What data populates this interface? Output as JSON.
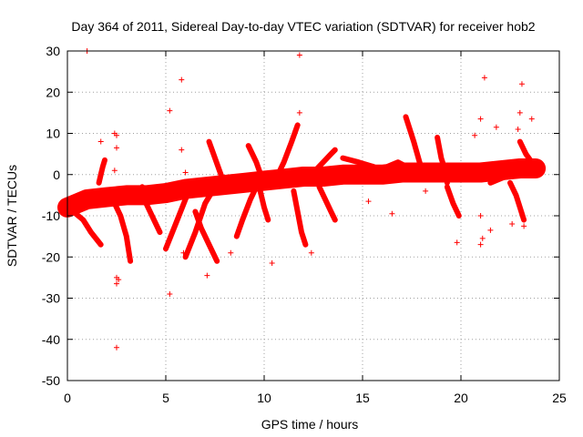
{
  "chart_data": {
    "type": "scatter",
    "title": "Day 364 of 2011, Sidereal Day-to-day VTEC variation (SDTVAR) for receiver hob2",
    "xlabel": "GPS time / hours",
    "ylabel": "SDTVAR / TECUs",
    "xlim": [
      0,
      25
    ],
    "ylim": [
      -50,
      30
    ],
    "xticks": [
      0,
      5,
      10,
      15,
      20,
      25
    ],
    "yticks": [
      -50,
      -40,
      -30,
      -20,
      -10,
      0,
      10,
      20,
      30
    ],
    "grid": true,
    "marker": "+",
    "color": "#ff0000",
    "trend": [
      [
        0.0,
        -8
      ],
      [
        1.0,
        -6
      ],
      [
        2.0,
        -5.5
      ],
      [
        3.0,
        -5
      ],
      [
        4.0,
        -5
      ],
      [
        5.0,
        -4.5
      ],
      [
        6.0,
        -3.5
      ],
      [
        7.0,
        -3
      ],
      [
        8.0,
        -2.5
      ],
      [
        9.0,
        -2
      ],
      [
        10.0,
        -1.5
      ],
      [
        11.0,
        -1
      ],
      [
        12.0,
        -0.5
      ],
      [
        13.0,
        -0.5
      ],
      [
        14.0,
        0
      ],
      [
        15.0,
        0
      ],
      [
        16.0,
        0
      ],
      [
        17.0,
        0.5
      ],
      [
        18.0,
        0.5
      ],
      [
        19.0,
        0.5
      ],
      [
        20.0,
        0.5
      ],
      [
        21.0,
        0.5
      ],
      [
        22.0,
        1.0
      ],
      [
        23.0,
        1.5
      ],
      [
        23.8,
        1.5
      ]
    ],
    "tracks": [
      [
        [
          0.3,
          -9
        ],
        [
          0.8,
          -11
        ],
        [
          1.2,
          -14
        ],
        [
          1.7,
          -17
        ]
      ],
      [
        [
          1.6,
          -2
        ],
        [
          1.7,
          0
        ],
        [
          1.8,
          2
        ],
        [
          1.9,
          3.5
        ]
      ],
      [
        [
          2.3,
          -6
        ],
        [
          2.7,
          -10
        ],
        [
          3.0,
          -15
        ],
        [
          3.2,
          -21
        ]
      ],
      [
        [
          3.8,
          -3
        ],
        [
          4.0,
          -7
        ],
        [
          4.4,
          -11
        ],
        [
          4.7,
          -14
        ]
      ],
      [
        [
          5.0,
          -18
        ],
        [
          5.5,
          -12
        ],
        [
          6.0,
          -6
        ],
        [
          6.4,
          -2
        ]
      ],
      [
        [
          6.5,
          -9
        ],
        [
          6.8,
          -13
        ],
        [
          7.2,
          -17
        ],
        [
          7.6,
          -21
        ]
      ],
      [
        [
          6.0,
          -20
        ],
        [
          6.5,
          -14
        ],
        [
          7.0,
          -7
        ],
        [
          7.5,
          -3
        ]
      ],
      [
        [
          7.2,
          8
        ],
        [
          7.5,
          4
        ],
        [
          7.8,
          0
        ],
        [
          8.1,
          -3
        ]
      ],
      [
        [
          8.6,
          -15
        ],
        [
          8.9,
          -11
        ],
        [
          9.3,
          -6
        ],
        [
          9.6,
          -3
        ]
      ],
      [
        [
          9.2,
          7
        ],
        [
          9.6,
          3
        ],
        [
          9.9,
          -1
        ],
        [
          10.2,
          -3
        ]
      ],
      [
        [
          9.8,
          -4
        ],
        [
          10.0,
          -8
        ],
        [
          10.2,
          -11
        ]
      ],
      [
        [
          10.5,
          -2
        ],
        [
          11.0,
          3
        ],
        [
          11.4,
          8
        ],
        [
          11.7,
          12
        ]
      ],
      [
        [
          11.5,
          -4
        ],
        [
          11.7,
          -9
        ],
        [
          11.9,
          -14
        ],
        [
          12.1,
          -17
        ]
      ],
      [
        [
          12.6,
          1
        ],
        [
          13.0,
          3
        ],
        [
          13.4,
          5
        ],
        [
          13.6,
          6
        ]
      ],
      [
        [
          12.8,
          -3
        ],
        [
          13.1,
          -6
        ],
        [
          13.4,
          -9
        ],
        [
          13.6,
          -11
        ]
      ],
      [
        [
          14.0,
          4
        ],
        [
          14.8,
          3
        ],
        [
          15.5,
          2
        ],
        [
          16.0,
          1
        ]
      ],
      [
        [
          16.3,
          2
        ],
        [
          16.8,
          3
        ],
        [
          17.2,
          2
        ],
        [
          17.6,
          1
        ]
      ],
      [
        [
          17.2,
          14
        ],
        [
          17.6,
          8
        ],
        [
          17.9,
          3
        ],
        [
          18.1,
          0
        ]
      ],
      [
        [
          18.8,
          9
        ],
        [
          19.0,
          4
        ],
        [
          19.2,
          1
        ],
        [
          19.3,
          -2
        ]
      ],
      [
        [
          19.3,
          -3
        ],
        [
          19.6,
          -7
        ],
        [
          19.9,
          -10
        ]
      ],
      [
        [
          21.5,
          -2
        ],
        [
          22.0,
          -1
        ],
        [
          22.5,
          0
        ],
        [
          23.0,
          3
        ]
      ],
      [
        [
          22.5,
          -2
        ],
        [
          22.8,
          -5
        ],
        [
          23.0,
          -8
        ],
        [
          23.2,
          -11
        ]
      ],
      [
        [
          23.0,
          8
        ],
        [
          23.3,
          5
        ],
        [
          23.6,
          3
        ],
        [
          23.8,
          2
        ]
      ]
    ],
    "outliers": [
      [
        1.0,
        30
      ],
      [
        11.8,
        29
      ],
      [
        5.8,
        23
      ],
      [
        21.2,
        23.5
      ],
      [
        23.1,
        22
      ],
      [
        5.2,
        15.5
      ],
      [
        23.0,
        15
      ],
      [
        11.8,
        15
      ],
      [
        21.0,
        13.5
      ],
      [
        23.6,
        13.5
      ],
      [
        21.8,
        11.5
      ],
      [
        2.4,
        10
      ],
      [
        2.5,
        9.5
      ],
      [
        1.7,
        8
      ],
      [
        20.7,
        9.5
      ],
      [
        5.8,
        6
      ],
      [
        2.5,
        6.5
      ],
      [
        6.0,
        0.5
      ],
      [
        2.4,
        1
      ],
      [
        22.9,
        11
      ],
      [
        2.5,
        -25
      ],
      [
        2.6,
        -25.5
      ],
      [
        2.5,
        -26.5
      ],
      [
        2.5,
        -42
      ],
      [
        5.2,
        -29
      ],
      [
        10.4,
        -21.5
      ],
      [
        7.1,
        -24.5
      ],
      [
        8.3,
        -19
      ],
      [
        12.4,
        -19
      ],
      [
        5.9,
        -19
      ],
      [
        19.8,
        -16.5
      ],
      [
        21.0,
        -17
      ],
      [
        21.1,
        -15.5
      ],
      [
        21.5,
        -13.5
      ],
      [
        23.2,
        -12.5
      ],
      [
        16.5,
        -9.5
      ],
      [
        15.3,
        -6.5
      ],
      [
        18.2,
        -4
      ],
      [
        22.6,
        -12
      ],
      [
        21.0,
        -10
      ]
    ]
  }
}
